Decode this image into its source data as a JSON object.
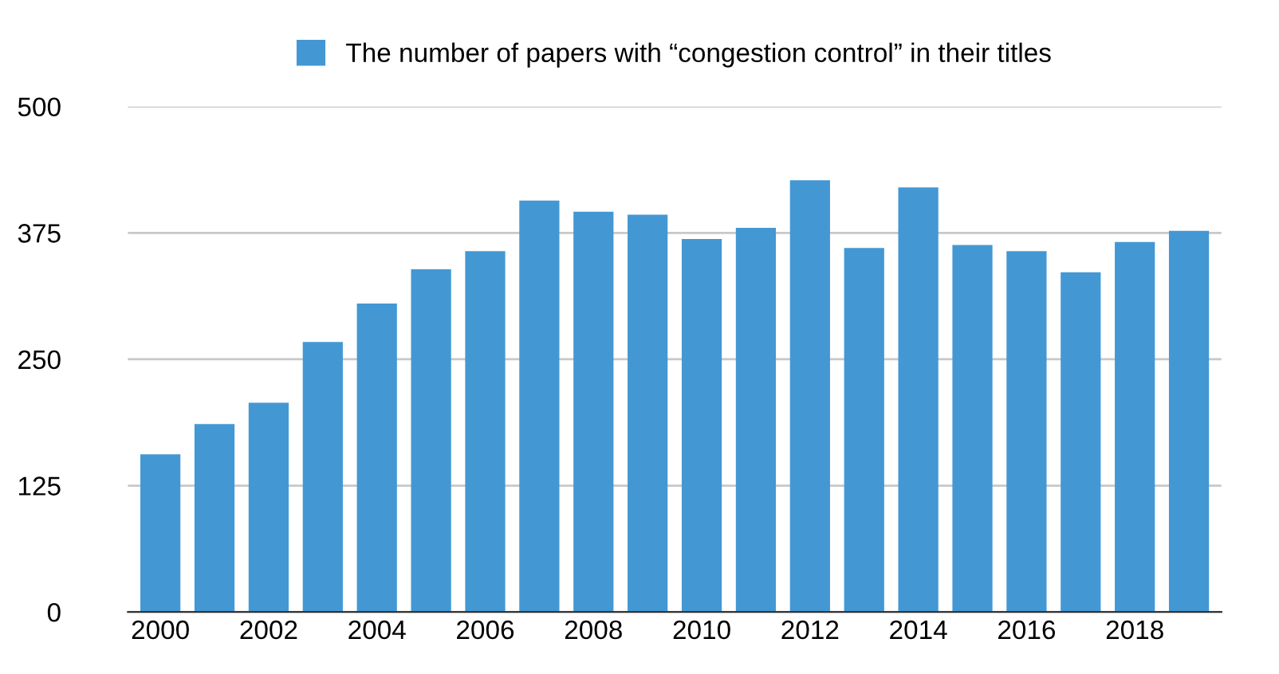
{
  "chart_data": {
    "type": "bar",
    "categories": [
      "2000",
      null,
      "2002",
      null,
      "2004",
      null,
      "2006",
      null,
      "2008",
      null,
      "2010",
      null,
      "2012",
      null,
      "2014",
      null,
      "2016",
      null,
      "2018",
      null
    ],
    "series": [
      {
        "name": "The number of papers with “congestion control” in their titles",
        "color": "#4398d4",
        "values": [
          156,
          186,
          207,
          267,
          305,
          339,
          357,
          407,
          396,
          393,
          369,
          380,
          427,
          360,
          420,
          363,
          357,
          336,
          366,
          377
        ]
      }
    ],
    "ylim": [
      0,
      500
    ],
    "yticks": [
      0,
      125,
      250,
      375,
      500
    ],
    "grid": "y",
    "legend": "top"
  }
}
